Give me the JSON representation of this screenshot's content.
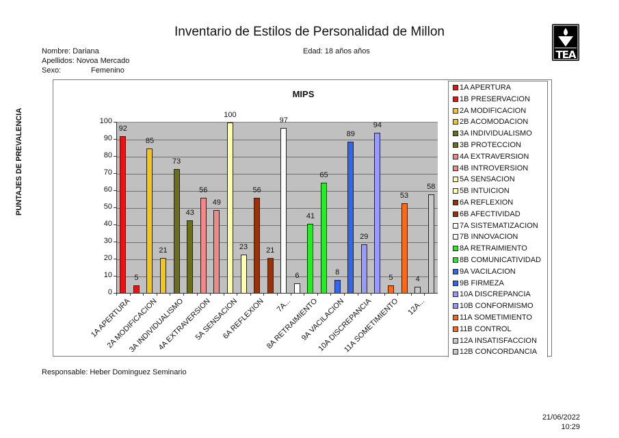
{
  "header": {
    "title": "Inventario de Estilos de Personalidad de Millon",
    "nombre": "Nombre: Dariana",
    "apellidos": "Apellidos: Novoa Mercado",
    "sexo_label": "Sexo:",
    "sexo_value": "Femenino",
    "edad": "Edad: 18 años años",
    "logo_text": "TEA"
  },
  "footer": {
    "responsable": "Responsable: Heber Dominguez Seminario",
    "date": "21/06/2022",
    "time": "10:29"
  },
  "chart_data": {
    "type": "bar",
    "title": "MIPS",
    "xlabel": "",
    "ylabel": "PUNTAJES DE PREVALENCIA",
    "ylim": [
      0,
      100
    ],
    "yticks": [
      0,
      10,
      20,
      30,
      40,
      50,
      60,
      70,
      80,
      90,
      100
    ],
    "grid": true,
    "legend_position": "right",
    "categories": [
      "1A APERTURA",
      "1B PRESERVACION",
      "2A MODIFICACION",
      "2B ACOMODACION",
      "3A INDIVIDUALISMO",
      "3B PROTECCION",
      "4A EXTRAVERSION",
      "4B INTROVERSION",
      "5A SENSACION",
      "5B INTUICION",
      "6A REFLEXION",
      "6B AFECTIVIDAD",
      "7A SISTEMATIZACION",
      "7B INNOVACION",
      "8A RETRAIMIENTO",
      "8B COMUNICATIVIDAD",
      "9A VACILACION",
      "9B FIRMEZA",
      "10A DISCREPANCIA",
      "10B CONFORMISMO",
      "11A SOMETIMIENTO",
      "11B CONTROL",
      "12A INSATISFACCION",
      "12B CONCORDANCIA"
    ],
    "values": [
      92,
      5,
      85,
      21,
      73,
      43,
      56,
      49,
      100,
      23,
      56,
      21,
      97,
      6,
      41,
      65,
      8,
      89,
      29,
      94,
      5,
      53,
      4,
      58
    ],
    "colors": [
      "#ee1111",
      "#ee1111",
      "#f5c518",
      "#f5c518",
      "#6b7018",
      "#6b7018",
      "#f08a8a",
      "#f08a8a",
      "#ffffa8",
      "#ffffa8",
      "#9a3208",
      "#9a3208",
      "#ffffff",
      "#ffffff",
      "#22ee22",
      "#22ee22",
      "#3366ee",
      "#3366ee",
      "#9999ff",
      "#9999ff",
      "#ff6a10",
      "#ff6a10",
      "#c8c8c8",
      "#c8c8c8"
    ],
    "x_tick_labels": [
      "1A APERTURA",
      "2A MODIFICACION",
      "3A INDIVIDUALISMO",
      "4A EXTRAVERSION",
      "5A SENSACION",
      "6A REFLEXION",
      "7A...",
      "8A RETRAIMIENTO",
      "9A VACILACION",
      "10A DISCREPANCIA",
      "11A SOMETIMIENTO",
      "12A..."
    ]
  }
}
